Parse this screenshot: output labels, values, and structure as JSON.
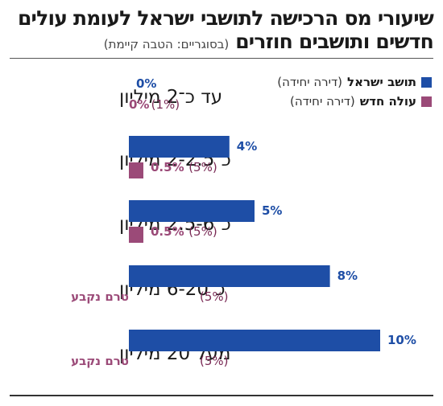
{
  "header": {
    "title": "שיעורי מס הרכישה לתושבי ישראל לעומת עולים",
    "subtitle_bold": "חדשים ותושבים חוזרים",
    "subtitle_note": "(בסוגריים: הטבה קיימת)"
  },
  "colors": {
    "resident": "#1e4ea6",
    "new_immigrant": "#9b4a78",
    "paren_text": "#7a2a55"
  },
  "legend": [
    {
      "name": "תושב ישראל",
      "note": "(דירה יחידה)"
    },
    {
      "name": "עולה חדש",
      "note": "(דירה יחידה)"
    }
  ],
  "chart_data": {
    "type": "bar",
    "orientation": "horizontal",
    "xlim": [
      0,
      10
    ],
    "grid": false,
    "legend_position": "top-right",
    "categories": [
      "עד כ־2 מיליון",
      "כ־2-2.5 מיליון",
      "כ־2.5-6 מיליון",
      "כ־6-20 מיליון",
      "מעל 20 מיליון"
    ],
    "series": [
      {
        "name": "תושב ישראל",
        "values": [
          0,
          4,
          5,
          8,
          10
        ],
        "labels": [
          "0%",
          "4%",
          "5%",
          "8%",
          "10%"
        ]
      },
      {
        "name": "עולה חדש",
        "values": [
          0,
          0.5,
          0.5,
          null,
          null
        ],
        "labels": [
          "0%",
          "0.5%",
          "0.5%",
          "טרם נקבע",
          "טרם נקבע"
        ],
        "existing_benefit": [
          "(1%)",
          "(5%)",
          "(5%)",
          "(5%)",
          "(5%)"
        ]
      }
    ]
  }
}
